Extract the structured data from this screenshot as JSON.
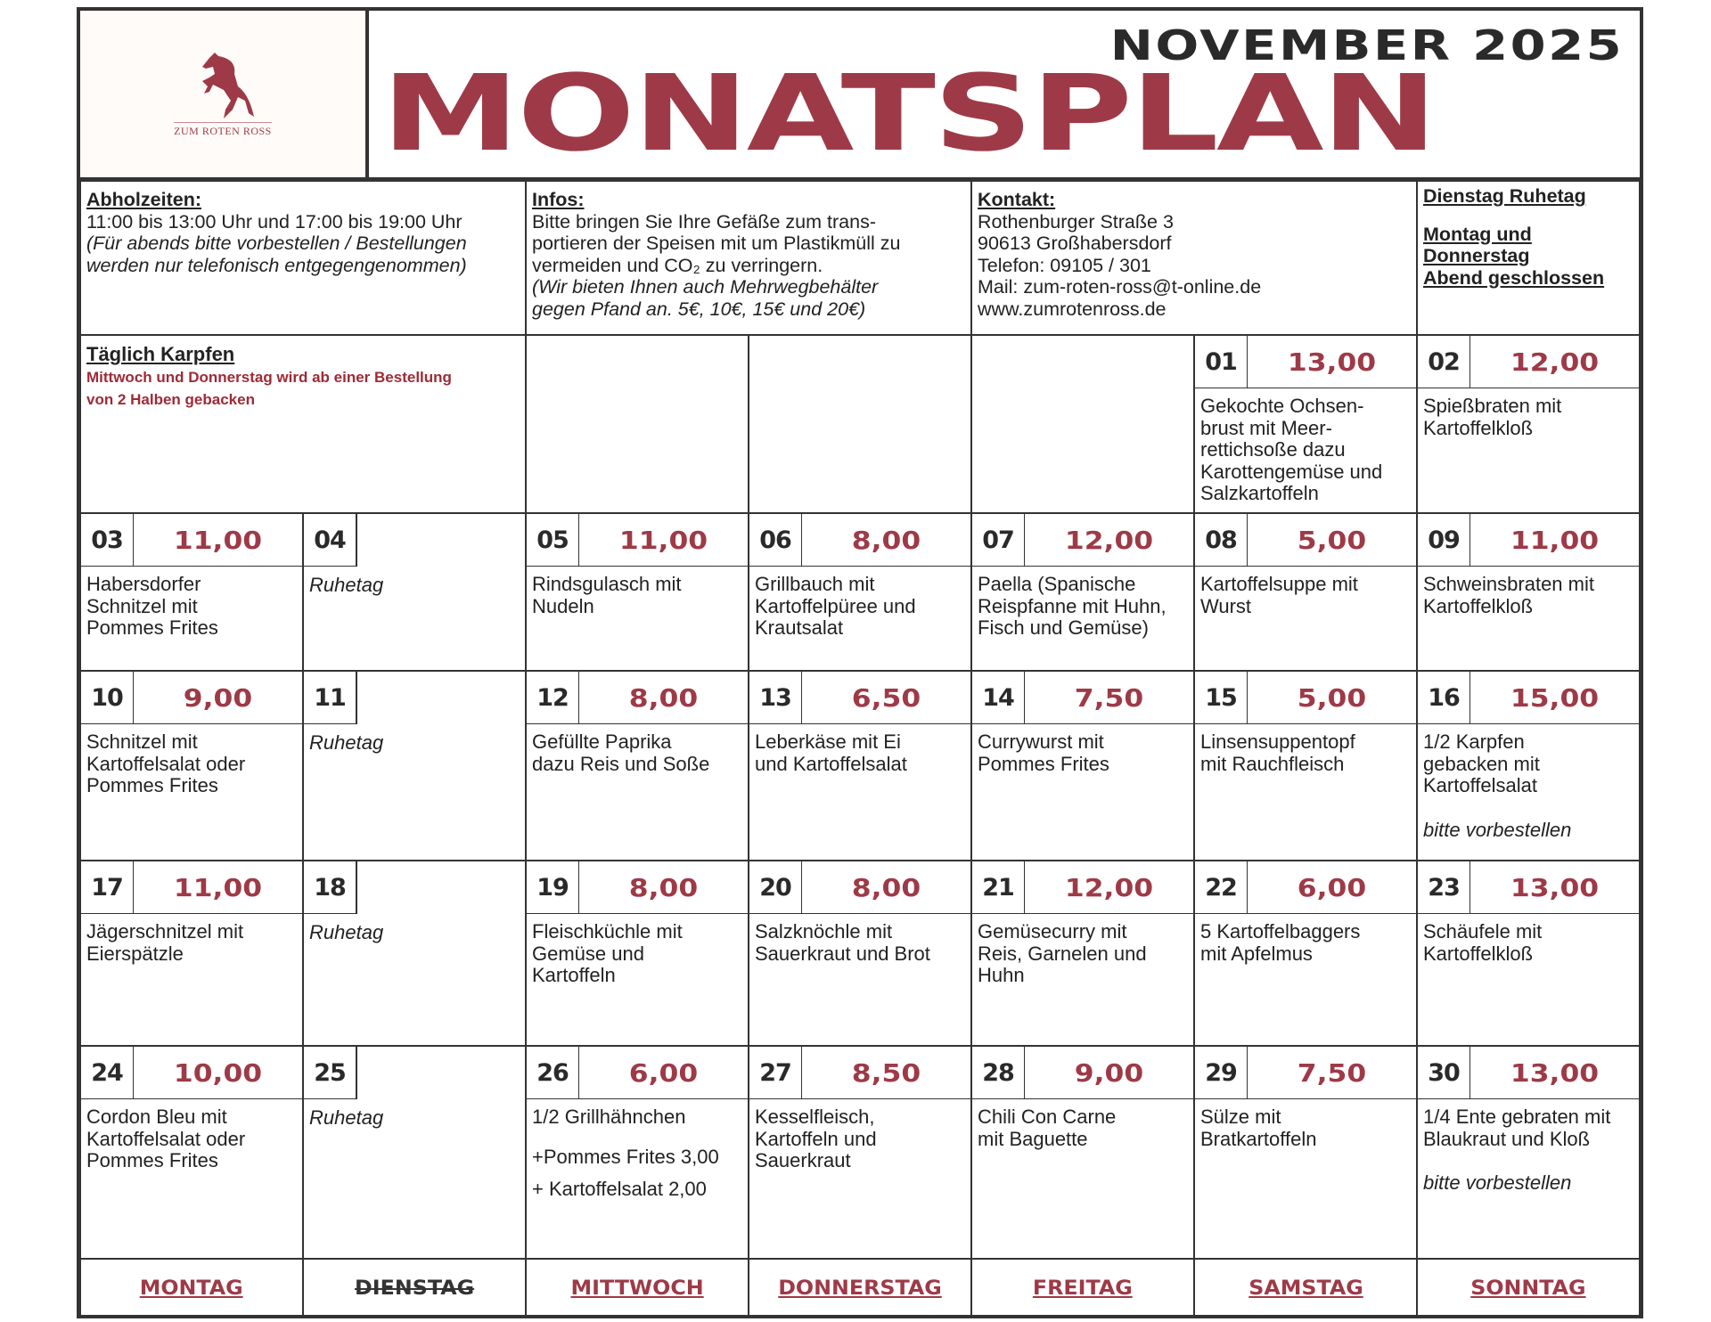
{
  "header": {
    "month": "NOVEMBER 2025",
    "title": "MONATSPLAN",
    "logo_text": "ZUM ROTEN ROSS",
    "accent": "#9e3a47"
  },
  "info": {
    "pickup": {
      "heading": "Abholzeiten:",
      "text": "11:00 bis 13:00 Uhr und 17:00 bis 19:00 Uhr",
      "note": "(Für abends bitte vorbestellen / Bestellungen werden nur telefonisch entgegengenommen)"
    },
    "infos": {
      "heading": "Infos:",
      "text": "Bitte bringen Sie Ihre Gefäße zum trans-\nportieren der Speisen mit um Plastikmüll zu\nvermeiden und CO₂ zu verringern.",
      "note": "(Wir bieten Ihnen auch Mehrwegbehälter\ngegen Pfand an. 5€, 10€, 15€ und 20€)"
    },
    "contact": {
      "heading": "Kontakt:",
      "address": "Rothenburger Straße 3",
      "city": "90613 Großhabersdorf",
      "phone": "Telefon: 09105 / 301",
      "mail": "Mail: zum-roten-ross@t-online.de",
      "web": "www.zumrotenross.de"
    },
    "closed": {
      "line1": "Dienstag Ruhetag",
      "line2": "Montag und\nDonnerstag\nAbend geschlossen"
    }
  },
  "karpfen": {
    "heading": "Täglich Karpfen",
    "text": "Mittwoch und Donnerstag wird ab einer Bestellung\nvon 2 Halben gebacken"
  },
  "weeks": [
    [
      null,
      null,
      null,
      null,
      null,
      {
        "num": "01",
        "price": "13,00",
        "dish": "Gekochte Ochsen-\nbrust mit Meer-\nrettichsoße dazu\nKarottengemüse und\nSalzkartoffeln"
      },
      {
        "num": "02",
        "price": "12,00",
        "dish": "Spießbraten mit\nKartoffelkloß"
      }
    ],
    [
      {
        "num": "03",
        "price": "11,00",
        "dish": "Habersdorfer\nSchnitzel mit\nPommes Frites"
      },
      {
        "num": "04",
        "closed": "Ruhetag"
      },
      {
        "num": "05",
        "price": "11,00",
        "dish": "Rindsgulasch mit\nNudeln"
      },
      {
        "num": "06",
        "price": "8,00",
        "dish": "Grillbauch mit\nKartoffelpüree und\nKrautsalat"
      },
      {
        "num": "07",
        "price": "12,00",
        "dish": "Paella (Spanische\nReispfanne mit Huhn,\nFisch und Gemüse)"
      },
      {
        "num": "08",
        "price": "5,00",
        "dish": "Kartoffelsuppe mit\nWurst"
      },
      {
        "num": "09",
        "price": "11,00",
        "dish": "Schweinsbraten mit\nKartoffelkloß"
      }
    ],
    [
      {
        "num": "10",
        "price": "9,00",
        "dish": "Schnitzel mit\nKartoffelsalat oder\nPommes Frites"
      },
      {
        "num": "11",
        "closed": "Ruhetag"
      },
      {
        "num": "12",
        "price": "8,00",
        "dish": "Gefüllte Paprika\ndazu Reis und Soße"
      },
      {
        "num": "13",
        "price": "6,50",
        "dish": "Leberkäse mit Ei\nund Kartoffelsalat"
      },
      {
        "num": "14",
        "price": "7,50",
        "dish": "Currywurst mit\nPommes Frites"
      },
      {
        "num": "15",
        "price": "5,00",
        "dish": "Linsensuppentopf\nmit Rauchfleisch"
      },
      {
        "num": "16",
        "price": "15,00",
        "dish": "1/2 Karpfen\ngebacken mit\nKartoffelsalat",
        "note": "bitte vorbestellen"
      }
    ],
    [
      {
        "num": "17",
        "price": "11,00",
        "dish": "Jägerschnitzel mit\nEierspätzle"
      },
      {
        "num": "18",
        "closed": "Ruhetag"
      },
      {
        "num": "19",
        "price": "8,00",
        "dish": "Fleischküchle mit\nGemüse und\nKartoffeln"
      },
      {
        "num": "20",
        "price": "8,00",
        "dish": "Salzknöchle mit\nSauerkraut und Brot"
      },
      {
        "num": "21",
        "price": "12,00",
        "dish": "Gemüsecurry mit\nReis, Garnelen und\nHuhn"
      },
      {
        "num": "22",
        "price": "6,00",
        "dish": "5 Kartoffelbaggers\nmit Apfelmus"
      },
      {
        "num": "23",
        "price": "13,00",
        "dish": "Schäufele mit\nKartoffelkloß"
      }
    ],
    [
      {
        "num": "24",
        "price": "10,00",
        "dish": "Cordon Bleu mit\nKartoffelsalat oder\nPommes Frites"
      },
      {
        "num": "25",
        "closed": "Ruhetag"
      },
      {
        "num": "26",
        "price": "6,00",
        "dish": "1/2 Grillhähnchen",
        "extras": [
          "+Pommes Frites 3,00",
          "+ Kartoffelsalat 2,00"
        ]
      },
      {
        "num": "27",
        "price": "8,50",
        "dish": "Kesselfleisch,\nKartoffeln und\nSauerkraut"
      },
      {
        "num": "28",
        "price": "9,00",
        "dish": "Chili Con Carne\nmit Baguette"
      },
      {
        "num": "29",
        "price": "7,50",
        "dish": "Sülze mit\nBratkartoffeln"
      },
      {
        "num": "30",
        "price": "13,00",
        "dish": "1/4 Ente gebraten mit\nBlaukraut und Kloß",
        "note": "bitte vorbestellen"
      }
    ]
  ],
  "weekdays": [
    {
      "label": "MONTAG"
    },
    {
      "label": "DIENSTAG",
      "struck": true
    },
    {
      "label": "MITTWOCH"
    },
    {
      "label": "DONNERSTAG"
    },
    {
      "label": "FREITAG"
    },
    {
      "label": "SAMSTAG"
    },
    {
      "label": "SONNTAG"
    }
  ]
}
